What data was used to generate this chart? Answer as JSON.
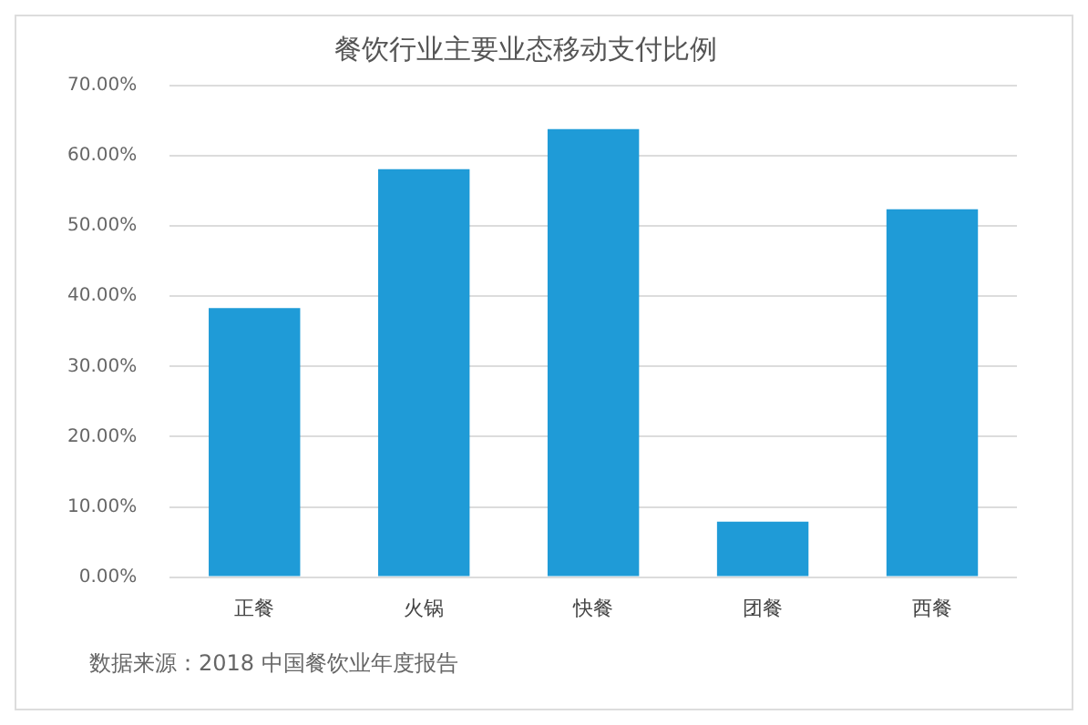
{
  "chart_data": {
    "type": "bar",
    "title": "餐饮行业主要业态移动支付比例",
    "categories": [
      "正餐",
      "火锅",
      "快餐",
      "团餐",
      "西餐"
    ],
    "values": [
      38.3,
      58.1,
      63.8,
      7.9,
      52.4
    ],
    "color": "#1f9bd7",
    "ylim": [
      0,
      70
    ],
    "yticks": [
      {
        "value": 0,
        "label": "0.00%"
      },
      {
        "value": 10,
        "label": "10.00%"
      },
      {
        "value": 20,
        "label": "20.00%"
      },
      {
        "value": 30,
        "label": "30.00%"
      },
      {
        "value": 40,
        "label": "40.00%"
      },
      {
        "value": 50,
        "label": "50.00%"
      },
      {
        "value": 60,
        "label": "60.00%"
      },
      {
        "value": 70,
        "label": "70.00%"
      }
    ],
    "grid": "y",
    "annotations": [
      "数据来源：2018 中国餐饮业年度报告"
    ]
  }
}
